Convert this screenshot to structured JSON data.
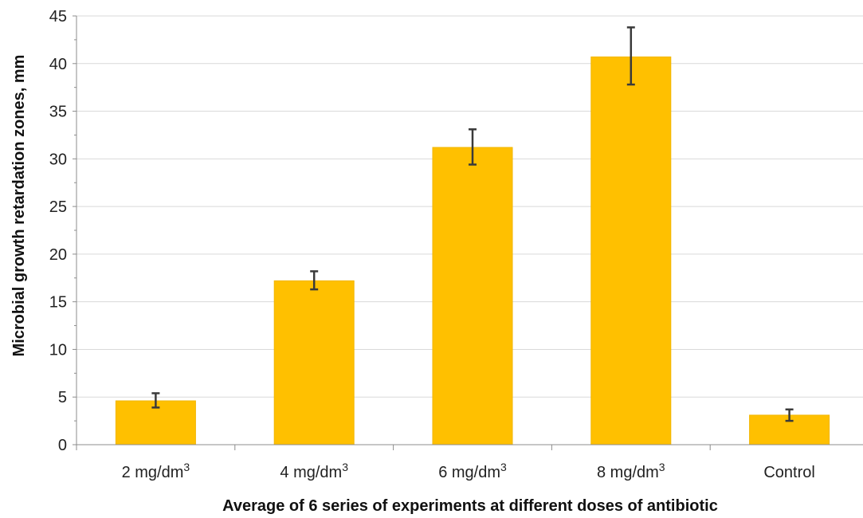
{
  "chart_data": {
    "type": "bar",
    "title": "",
    "xlabel": "Average of 6 series of experiments at different doses of antibiotic",
    "ylabel": "Microbial growth retardation zones, mm",
    "categories": [
      {
        "base": "2 mg/dm",
        "sup": "3"
      },
      {
        "base": "4 mg/dm",
        "sup": "3"
      },
      {
        "base": "6 mg/dm",
        "sup": "3"
      },
      {
        "base": "8 mg/dm",
        "sup": "3"
      },
      {
        "base": "Control",
        "sup": ""
      }
    ],
    "values": [
      4.6,
      17.2,
      31.2,
      40.7,
      3.1
    ],
    "error_low": [
      3.9,
      16.3,
      29.4,
      37.8,
      2.5
    ],
    "error_high": [
      5.4,
      18.2,
      33.1,
      43.8,
      3.7
    ],
    "ylim": [
      0,
      45
    ],
    "yticks": [
      0,
      5,
      10,
      15,
      20,
      25,
      30,
      35,
      40,
      45
    ],
    "grid": true,
    "legend": "none",
    "colors": {
      "bar": "#FFC000",
      "bar_edge": "#F2B600",
      "error_bar": "#3a3a3a",
      "grid": "#d9d9d9",
      "axis": "#8c8c8c"
    }
  }
}
